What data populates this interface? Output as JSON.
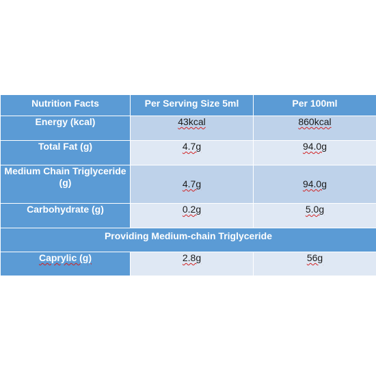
{
  "table": {
    "headers": [
      "Nutrition Facts",
      "Per Serving Size 5ml",
      "Per 100ml"
    ],
    "rows": [
      {
        "label": "Energy (kcal)",
        "serving": "43kcal",
        "per100": "860kcal"
      },
      {
        "label": "Total Fat (g)",
        "serving": "4.7g",
        "per100": "94.0g"
      },
      {
        "label": "Medium Chain Triglyceride (g)",
        "serving": "4.7g",
        "per100": "94.0g"
      },
      {
        "label": "Carbohydrate (g)",
        "serving": "0.2g",
        "per100": "5.0g"
      }
    ],
    "section_title": "Providing Medium-chain Triglyceride",
    "section_rows": [
      {
        "label": "Caprylic (g)",
        "serving": "2.8g",
        "per100": "56g"
      }
    ]
  },
  "colors": {
    "header_blue": "#5b9bd5",
    "cell_dark": "#bed2ea",
    "cell_light": "#dfe8f4"
  }
}
